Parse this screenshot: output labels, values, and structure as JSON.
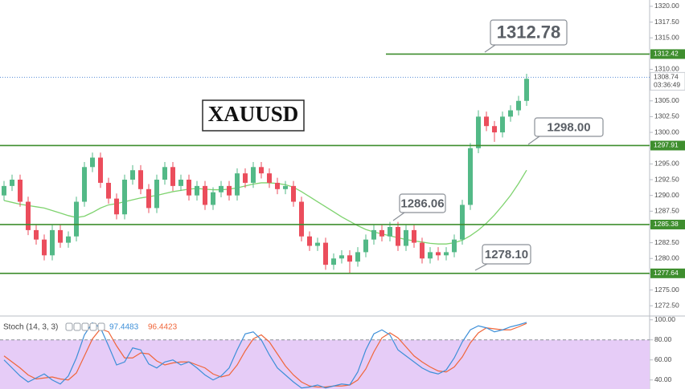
{
  "chart_data": [
    {
      "type": "candlestick",
      "title": "XAUUSD",
      "up_color": "#53b987",
      "down_color": "#eb4d5c",
      "ylim": [
        1271,
        1321
      ],
      "yticks": [
        {
          "value": 1272.5,
          "label": "1272.50"
        },
        {
          "value": 1275,
          "label": "1275.00"
        },
        {
          "value": 1277.5,
          "label": "1277.50"
        },
        {
          "value": 1280,
          "label": "1280.00"
        },
        {
          "value": 1282.5,
          "label": "1282.50"
        },
        {
          "value": 1285,
          "label": "1285.00"
        },
        {
          "value": 1287.5,
          "label": "1287.50"
        },
        {
          "value": 1290,
          "label": "1290.00"
        },
        {
          "value": 1292.5,
          "label": "1292.50"
        },
        {
          "value": 1295,
          "label": "1295.00"
        },
        {
          "value": 1297.5,
          "label": "1297.50"
        },
        {
          "value": 1300,
          "label": "1300.00"
        },
        {
          "value": 1302.5,
          "label": "1302.50"
        },
        {
          "value": 1305,
          "label": "1305.00"
        },
        {
          "value": 1307.5,
          "label": "1307.50"
        },
        {
          "value": 1310,
          "label": "1310.00"
        },
        {
          "value": 1312.5,
          "label": "1312.50"
        },
        {
          "value": 1315,
          "label": "1315.00"
        },
        {
          "value": 1317.5,
          "label": "1317.50"
        },
        {
          "value": 1320,
          "label": "1320.00"
        }
      ],
      "candles": {
        "open": [
          1290,
          1291.5,
          1292.5,
          1289,
          1284.5,
          1283,
          1280.5,
          1284.5,
          1282.5,
          1283.5,
          1289,
          1294.5,
          1296,
          1292,
          1289.5,
          1287,
          1292.5,
          1294,
          1291,
          1288,
          1292.5,
          1294.5,
          1291.5,
          1292.5,
          1290,
          1291.5,
          1288.5,
          1290.5,
          1291.5,
          1290,
          1293.5,
          1292,
          1294.5,
          1293.5,
          1292,
          1291,
          1291.5,
          1289,
          1283.5,
          1282,
          1282.5,
          1279,
          1280,
          1280.5,
          1279.5,
          1281,
          1283,
          1284.5,
          1283.5,
          1285,
          1282,
          1284.5,
          1282.5,
          1280,
          1281,
          1280.5,
          1281,
          1283,
          1288.5,
          1297.5,
          1302.5,
          1301,
          1300,
          1302.5,
          1303.5,
          1305
        ],
        "high": [
          1292.3,
          1293.3,
          1293.3,
          1289.8,
          1285.3,
          1283.8,
          1285.3,
          1285.3,
          1284.3,
          1289.8,
          1295.3,
          1296.8,
          1296.8,
          1292.8,
          1290.3,
          1293.3,
          1294.8,
          1294.8,
          1291.8,
          1293.3,
          1295.3,
          1295.3,
          1293.3,
          1293.3,
          1292.3,
          1292.3,
          1291.3,
          1292.3,
          1292.3,
          1294.3,
          1294.3,
          1295.3,
          1295.3,
          1294.3,
          1292.8,
          1292.3,
          1292.3,
          1289.8,
          1284.3,
          1283.3,
          1283.3,
          1280.8,
          1281.3,
          1281.3,
          1281.8,
          1283.8,
          1285.3,
          1285.3,
          1285.8,
          1285.8,
          1285.3,
          1285.3,
          1283.3,
          1281.8,
          1281.8,
          1281.8,
          1283.8,
          1289.3,
          1298.3,
          1303.5,
          1303.3,
          1301.8,
          1303.3,
          1304.3,
          1305.8,
          1309.3
        ],
        "low": [
          1289.2,
          1290.7,
          1288.2,
          1283.7,
          1282.2,
          1279.7,
          1279.7,
          1281.7,
          1281.7,
          1282.7,
          1288.2,
          1293.7,
          1291.2,
          1288.7,
          1286.2,
          1286.2,
          1291.7,
          1290.2,
          1287.2,
          1287.2,
          1291.7,
          1290.7,
          1290.7,
          1289.2,
          1289.2,
          1287.7,
          1287.7,
          1289.7,
          1289.2,
          1289.2,
          1291.2,
          1291.2,
          1292.7,
          1291.2,
          1290.2,
          1290.2,
          1288.2,
          1282.7,
          1281.2,
          1281.2,
          1278.2,
          1278.2,
          1279.2,
          1277.6,
          1278.7,
          1280.2,
          1282.2,
          1282.7,
          1282.7,
          1281.2,
          1281.2,
          1281.7,
          1279.2,
          1279.2,
          1279.7,
          1279.7,
          1280.2,
          1282.2,
          1287.7,
          1296.7,
          1300.2,
          1298.5,
          1299.2,
          1301.7,
          1302.7,
          1304.2
        ],
        "close": [
          1291.5,
          1292.5,
          1289,
          1284.5,
          1283,
          1280.5,
          1284.5,
          1282.5,
          1283.5,
          1289,
          1294.5,
          1296,
          1292,
          1289.5,
          1287,
          1292.5,
          1294,
          1291,
          1288,
          1292.5,
          1294.5,
          1291.5,
          1292.5,
          1290,
          1291.5,
          1288.5,
          1290.5,
          1291.5,
          1290,
          1293.5,
          1292,
          1294.5,
          1293.5,
          1292,
          1291,
          1291.5,
          1289,
          1283.5,
          1282,
          1282.5,
          1279,
          1280,
          1280.5,
          1279.5,
          1281,
          1283,
          1284.5,
          1283.5,
          1285,
          1282,
          1284.5,
          1282.5,
          1280,
          1281,
          1280.5,
          1281,
          1283,
          1288.5,
          1297.5,
          1302.5,
          1301,
          1300,
          1302.5,
          1303.5,
          1305,
          1308.5
        ]
      },
      "ma": {
        "color": "#7fd36f",
        "values": [
          1289.2,
          1288.9,
          1288.6,
          1288.4,
          1288.2,
          1288.0,
          1287.6,
          1287.2,
          1286.8,
          1286.5,
          1286.7,
          1287.3,
          1288.0,
          1288.5,
          1288.7,
          1289.0,
          1289.3,
          1289.6,
          1289.8,
          1290.0,
          1290.3,
          1290.6,
          1290.8,
          1291.0,
          1291.1,
          1291.0,
          1290.9,
          1290.9,
          1291.0,
          1291.2,
          1291.5,
          1291.8,
          1292.0,
          1292.0,
          1291.9,
          1291.7,
          1291.3,
          1290.6,
          1289.8,
          1289.0,
          1288.2,
          1287.4,
          1286.6,
          1285.9,
          1285.2,
          1284.6,
          1284.2,
          1283.9,
          1283.6,
          1283.3,
          1283.0,
          1282.8,
          1282.6,
          1282.4,
          1282.3,
          1282.3,
          1282.5,
          1282.9,
          1283.6,
          1284.5,
          1285.6,
          1286.9,
          1288.4,
          1290.0,
          1291.9,
          1294.0
        ]
      },
      "level_color": "#3e8e2e",
      "levels": [
        1312.42,
        1297.91,
        1285.38,
        1277.64
      ],
      "current_price": 1308.74,
      "countdown": "03:36:49",
      "annotations": [
        "1312.78",
        "1298.00",
        "1286.06",
        "1278.10"
      ]
    },
    {
      "type": "line",
      "title": "Stoch (14, 3, 3)",
      "ylim": [
        31,
        103
      ],
      "yticks": [
        {
          "value": 40,
          "label": "40.00"
        },
        {
          "value": 60,
          "label": "60.00"
        },
        {
          "value": 80,
          "label": "80.00"
        },
        {
          "value": 100,
          "label": "100.00"
        }
      ],
      "band_top": 80,
      "band_color": "#e6ccf7",
      "series": [
        {
          "color": "#3d8fd8",
          "values": [
            60,
            52,
            44,
            38,
            42,
            46,
            40,
            36,
            44,
            62,
            85,
            97,
            92,
            74,
            55,
            58,
            72,
            70,
            56,
            52,
            58,
            60,
            55,
            58,
            52,
            45,
            40,
            44,
            52,
            70,
            86,
            88,
            80,
            65,
            52,
            45,
            38,
            32,
            33,
            35,
            32,
            34,
            36,
            35,
            48,
            70,
            86,
            90,
            85,
            70,
            64,
            58,
            52,
            48,
            46,
            50,
            62,
            78,
            90,
            94,
            92,
            88,
            90,
            93,
            95,
            97.4483
          ]
        },
        {
          "color": "#f0663a",
          "values": [
            64,
            58,
            52,
            45,
            41,
            42,
            43,
            41,
            40,
            47,
            64,
            81,
            91,
            88,
            74,
            62,
            62,
            67,
            66,
            59,
            55,
            57,
            58,
            58,
            55,
            52,
            46,
            43,
            45,
            55,
            69,
            81,
            85,
            78,
            66,
            54,
            45,
            38,
            34,
            33,
            33,
            34,
            34,
            35,
            40,
            51,
            68,
            82,
            87,
            82,
            73,
            64,
            58,
            53,
            49,
            48,
            53,
            63,
            77,
            87,
            92,
            91,
            90,
            90,
            93,
            96.4423
          ]
        }
      ]
    }
  ]
}
